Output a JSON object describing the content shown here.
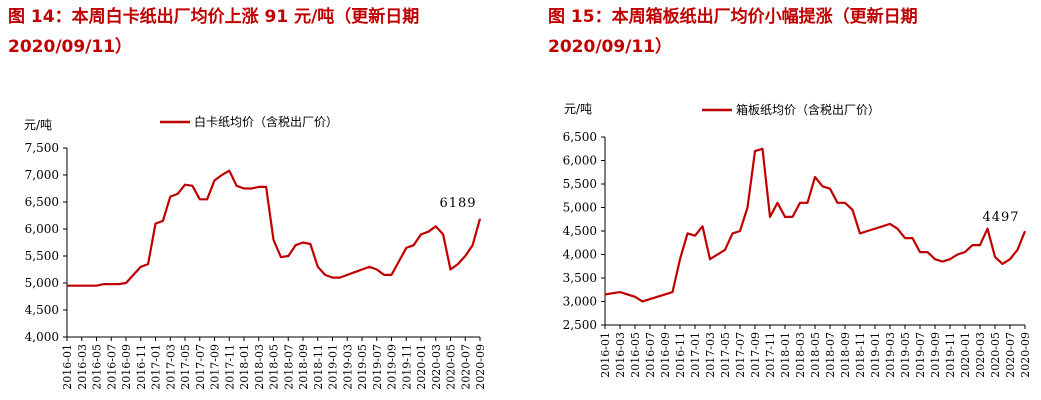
{
  "figures": [
    {
      "title_line1": "图 14：本周白卡纸出厂均价上涨 91 元/吨（更新日期",
      "title_line2": "2020/09/11）"
    },
    {
      "title_line1": "图 15：本周箱板纸出厂均价小幅提涨（更新日期",
      "title_line2": "2020/09/11）"
    }
  ],
  "chart_data": [
    {
      "type": "line",
      "title": "",
      "ylabel": "元/吨",
      "xlabel": "",
      "ylim": [
        4000,
        7500
      ],
      "yticks": [
        4000,
        4500,
        5000,
        5500,
        6000,
        6500,
        7000,
        7500
      ],
      "ytick_labels": [
        "4,000",
        "4,500",
        "5,000",
        "5,500",
        "6,000",
        "6,500",
        "7,000",
        "7,500"
      ],
      "x_tick_labels": [
        "2016-01",
        "2016-03",
        "2016-05",
        "2016-07",
        "2016-09",
        "2016-11",
        "2017-01",
        "2017-03",
        "2017-05",
        "2017-07",
        "2017-09",
        "2017-11",
        "2018-01",
        "2018-03",
        "2018-05",
        "2018-07",
        "2018-09",
        "2018-11",
        "2019-01",
        "2019-03",
        "2019-05",
        "2019-07",
        "2019-09",
        "2019-11",
        "2020-01",
        "2020-03",
        "2020-05",
        "2020-07",
        "2020-09"
      ],
      "legend_position": "top",
      "grid": false,
      "line_color": "#c00000",
      "end_label": "6189",
      "series": [
        {
          "name": "白卡纸均价（含税出厂价）",
          "x": [
            "2016-01",
            "2016-03",
            "2016-05",
            "2016-06",
            "2016-08",
            "2016-09",
            "2016-10",
            "2016-11",
            "2016-12",
            "2017-01",
            "2017-02",
            "2017-03",
            "2017-04",
            "2017-05",
            "2017-06",
            "2017-07",
            "2017-08",
            "2017-09",
            "2017-10",
            "2017-11",
            "2017-12",
            "2018-01",
            "2018-02",
            "2018-03",
            "2018-04",
            "2018-05",
            "2018-06",
            "2018-07",
            "2018-08",
            "2018-09",
            "2018-10",
            "2018-11",
            "2018-12",
            "2019-01",
            "2019-02",
            "2019-03",
            "2019-04",
            "2019-05",
            "2019-06",
            "2019-07",
            "2019-08",
            "2019-09",
            "2019-10",
            "2019-11",
            "2019-12",
            "2020-01",
            "2020-02",
            "2020-03",
            "2020-04",
            "2020-05",
            "2020-06",
            "2020-07",
            "2020-08",
            "2020-09"
          ],
          "y": [
            4950,
            4950,
            4950,
            4980,
            4980,
            5000,
            5150,
            5300,
            5350,
            6100,
            6150,
            6600,
            6650,
            6820,
            6800,
            6550,
            6550,
            6900,
            7000,
            7080,
            6800,
            6750,
            6750,
            6780,
            6780,
            5800,
            5480,
            5500,
            5700,
            5750,
            5720,
            5300,
            5150,
            5100,
            5100,
            5150,
            5200,
            5250,
            5300,
            5250,
            5150,
            5150,
            5400,
            5650,
            5700,
            5900,
            5950,
            6050,
            5900,
            5250,
            5350,
            5500,
            5700,
            6189
          ]
        }
      ]
    },
    {
      "type": "line",
      "title": "",
      "ylabel": "元/吨",
      "xlabel": "",
      "ylim": [
        2500,
        6500
      ],
      "yticks": [
        2500,
        3000,
        3500,
        4000,
        4500,
        5000,
        5500,
        6000,
        6500
      ],
      "ytick_labels": [
        "2,500",
        "3,000",
        "3,500",
        "4,000",
        "4,500",
        "5,000",
        "5,500",
        "6,000",
        "6,500"
      ],
      "x_tick_labels": [
        "2016-01",
        "2016-03",
        "2016-05",
        "2016-07",
        "2016-09",
        "2016-11",
        "2017-01",
        "2017-03",
        "2017-05",
        "2017-07",
        "2017-09",
        "2017-11",
        "2018-01",
        "2018-03",
        "2018-05",
        "2018-07",
        "2018-09",
        "2018-11",
        "2019-01",
        "2019-03",
        "2019-05",
        "2019-07",
        "2019-09",
        "2019-11",
        "2020-01",
        "2020-03",
        "2020-05",
        "2020-07",
        "2020-09"
      ],
      "legend_position": "top",
      "grid": false,
      "line_color": "#c00000",
      "end_label": "4497",
      "series": [
        {
          "name": "箱板纸均价（含税出厂价）",
          "x": [
            "2016-01",
            "2016-03",
            "2016-05",
            "2016-06",
            "2016-07",
            "2016-09",
            "2016-10",
            "2016-11",
            "2016-12",
            "2017-01",
            "2017-02",
            "2017-03",
            "2017-04",
            "2017-05",
            "2017-06",
            "2017-07",
            "2017-08",
            "2017-09",
            "2017-10",
            "2017-11",
            "2017-12",
            "2018-01",
            "2018-02",
            "2018-03",
            "2018-04",
            "2018-05",
            "2018-06",
            "2018-07",
            "2018-08",
            "2018-09",
            "2018-10",
            "2018-11",
            "2018-12",
            "2019-01",
            "2019-02",
            "2019-03",
            "2019-04",
            "2019-05",
            "2019-06",
            "2019-07",
            "2019-08",
            "2019-09",
            "2019-10",
            "2019-11",
            "2019-12",
            "2020-01",
            "2020-02",
            "2020-03",
            "2020-04",
            "2020-05",
            "2020-06",
            "2020-07",
            "2020-08",
            "2020-09"
          ],
          "y": [
            3150,
            3200,
            3100,
            3000,
            3050,
            3150,
            3200,
            3900,
            4450,
            4400,
            4600,
            3900,
            4000,
            4100,
            4450,
            4500,
            5000,
            6200,
            6250,
            4800,
            5100,
            4800,
            4800,
            5100,
            5100,
            5650,
            5450,
            5400,
            5100,
            5100,
            4950,
            4450,
            4500,
            4550,
            4600,
            4650,
            4550,
            4350,
            4350,
            4050,
            4050,
            3900,
            3850,
            3900,
            4000,
            4050,
            4200,
            4200,
            4550,
            3950,
            3800,
            3900,
            4100,
            4497
          ]
        }
      ]
    }
  ]
}
